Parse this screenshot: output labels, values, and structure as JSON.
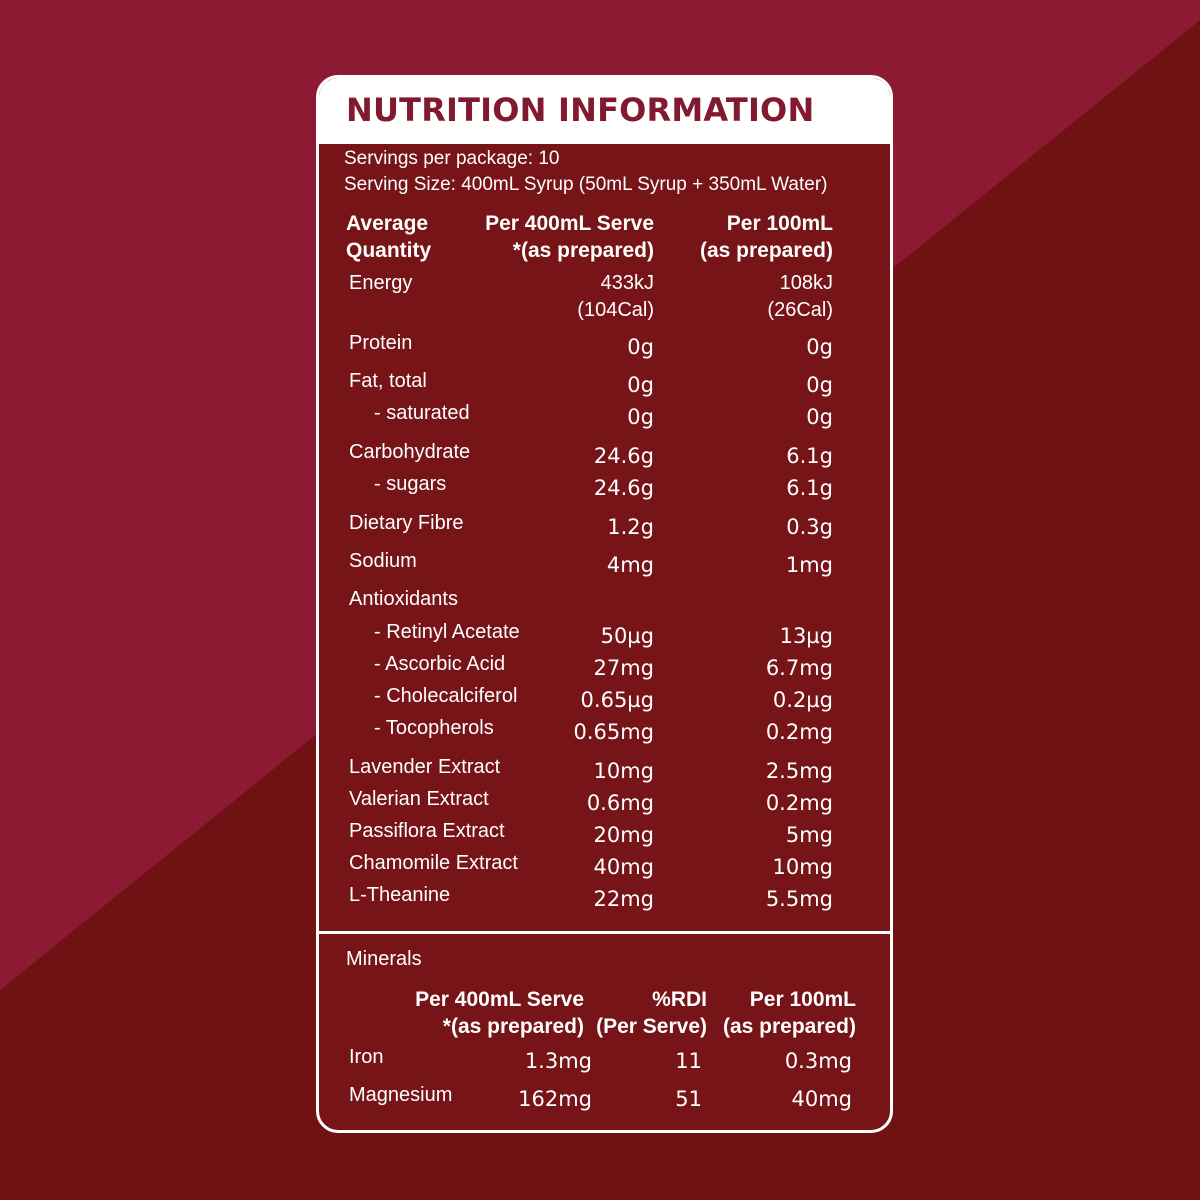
{
  "colors": {
    "bg_upper": "#8c1a33",
    "bg_lower": "#701214",
    "panel": "#761418",
    "title": "#821a2f",
    "text": "#ffffff"
  },
  "title": "NUTRITION INFORMATION",
  "servings_per_package": "Servings per package: 10",
  "serving_size": "Serving Size: 400mL Syrup (50mL Syrup + 350mL Water)",
  "main_headers": {
    "quantity": [
      "Average",
      "Quantity"
    ],
    "per_serve": [
      "Per 400mL Serve",
      "*(as prepared)"
    ],
    "per_100": [
      "Per 100mL",
      "(as prepared)"
    ]
  },
  "energy": {
    "label": "Energy",
    "serve": [
      "433kJ",
      "(104Cal)"
    ],
    "per100": [
      "108kJ",
      "(26Cal)"
    ]
  },
  "rows": [
    {
      "label": "Protein",
      "serve": "0g",
      "per100": "0g"
    },
    {
      "label": "Fat, total",
      "serve": "0g",
      "per100": "0g"
    },
    {
      "label": "- saturated",
      "serve": "0g",
      "per100": "0g"
    },
    {
      "label": "Carbohydrate",
      "serve": "24.6g",
      "per100": "6.1g"
    },
    {
      "label": "- sugars",
      "serve": "24.6g",
      "per100": "6.1g"
    },
    {
      "label": "Dietary Fibre",
      "serve": "1.2g",
      "per100": "0.3g"
    },
    {
      "label": "Sodium",
      "serve": "4mg",
      "per100": "1mg"
    },
    {
      "label": "Antioxidants",
      "serve": "",
      "per100": ""
    },
    {
      "label": "- Retinyl Acetate",
      "serve": "50µg",
      "per100": "13µg"
    },
    {
      "label": "- Ascorbic Acid",
      "serve": "27mg",
      "per100": "6.7mg"
    },
    {
      "label": "- Cholecalciferol",
      "serve": "0.65µg",
      "per100": "0.2µg"
    },
    {
      "label": "- Tocopherols",
      "serve": "0.65mg",
      "per100": "0.2mg"
    },
    {
      "label": "Lavender Extract",
      "serve": "10mg",
      "per100": "2.5mg"
    },
    {
      "label": "Valerian Extract",
      "serve": "0.6mg",
      "per100": "0.2mg"
    },
    {
      "label": "Passiflora Extract",
      "serve": "20mg",
      "per100": "5mg"
    },
    {
      "label": "Chamomile Extract",
      "serve": "40mg",
      "per100": "10mg"
    },
    {
      "label": "L-Theanine",
      "serve": "22mg",
      "per100": "5.5mg"
    }
  ],
  "minerals": {
    "label": "Minerals",
    "headers": {
      "per_serve": [
        "Per 400mL Serve",
        "*(as prepared)"
      ],
      "rdi": [
        "%RDI",
        "(Per Serve)"
      ],
      "per_100": [
        "Per 100mL",
        "(as prepared)"
      ]
    },
    "rows": [
      {
        "label": "Iron",
        "serve": "1.3mg",
        "rdi": "11",
        "per100": "0.3mg"
      },
      {
        "label": "Magnesium",
        "serve": "162mg",
        "rdi": "51",
        "per100": "40mg"
      }
    ]
  }
}
